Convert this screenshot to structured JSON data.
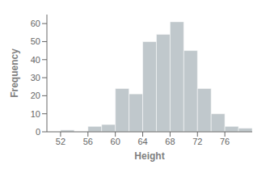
{
  "chart_data": {
    "type": "histogram",
    "bins": [
      52,
      54,
      56,
      58,
      60,
      62,
      64,
      66,
      68,
      70,
      72,
      74,
      76,
      78,
      80
    ],
    "values": [
      1,
      0,
      3,
      4,
      24,
      21,
      50,
      54,
      61,
      45,
      24,
      10,
      3,
      2
    ],
    "color": "#c0c8cc",
    "xlabel": "Height",
    "ylabel": "Frequency",
    "xlim": [
      50,
      80
    ],
    "xticks": [
      52,
      56,
      60,
      64,
      68,
      72,
      76
    ],
    "ylim": [
      0,
      65
    ],
    "yticks": [
      0,
      10,
      20,
      30,
      40,
      50,
      60
    ]
  }
}
